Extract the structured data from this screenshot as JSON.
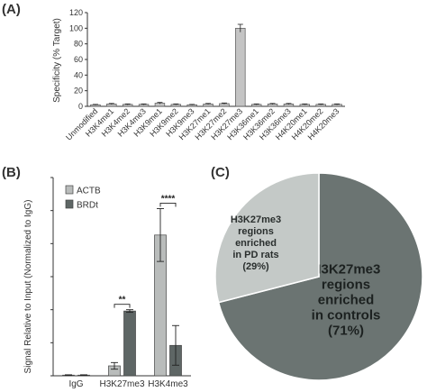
{
  "panels": {
    "a": "(A)",
    "b": "(B)",
    "c": "(C)"
  },
  "chart_data": [
    {
      "panel": "A",
      "type": "bar",
      "ylabel": "Specificity (% Target)",
      "xlabel": "",
      "ylim": [
        0,
        120
      ],
      "yticks": [
        0,
        20,
        40,
        60,
        80,
        100,
        120
      ],
      "categories": [
        "Unmodified",
        "H3K4me1",
        "H3K4me2",
        "H3K4me3",
        "H3K9me1",
        "H3K9me2",
        "H3K9me3",
        "H3K27me1",
        "H3K27me2",
        "H3K27me3",
        "H3K36me1",
        "H3K36me2",
        "H3K36me3",
        "H4K20me1",
        "H4K20me2",
        "H4K20me3"
      ],
      "values": [
        2,
        3,
        2.5,
        2.5,
        4,
        2.5,
        2,
        3,
        3.5,
        100,
        2.5,
        3,
        3,
        2.5,
        2.5,
        2.5
      ],
      "errors": [
        0.5,
        0.7,
        0.6,
        0.6,
        1.0,
        0.6,
        0.5,
        0.7,
        0.8,
        5,
        0.6,
        0.7,
        0.7,
        0.6,
        0.6,
        0.6
      ],
      "bar_color": "#c4c4c4"
    },
    {
      "panel": "B",
      "type": "bar",
      "ylabel": "Signal Relative to Input (Normalized to IgG)",
      "xlabel": "",
      "ylim": [
        0,
        300
      ],
      "yticks": [
        0,
        50,
        100,
        150,
        200,
        250,
        300
      ],
      "categories": [
        "IgG",
        "H3K27me3",
        "H3K4me3"
      ],
      "series": [
        {
          "name": "ACTB",
          "values": [
            1,
            15,
            213
          ],
          "errors": [
            0.5,
            5,
            40
          ],
          "color": "#b9bcbb"
        },
        {
          "name": "BRDt",
          "values": [
            1,
            98,
            46
          ],
          "errors": [
            0.5,
            2,
            30
          ],
          "color": "#5e6665"
        }
      ],
      "significance": [
        {
          "category": "H3K27me3",
          "label": "**"
        },
        {
          "category": "H3K4me3",
          "label": "****"
        }
      ]
    },
    {
      "panel": "C",
      "type": "pie",
      "slices": [
        {
          "label_lines": [
            "H3K27me3",
            "regions",
            "enriched",
            "in controls",
            "(71%)"
          ],
          "value": 71,
          "color": "#6b7472",
          "text_color": "#1c2120"
        },
        {
          "label_lines": [
            "H3K27me3",
            "regions",
            "enriched",
            "in PD rats",
            "(29%)"
          ],
          "value": 29,
          "color": "#c4c9c7",
          "text_color": "#2a2f2e"
        }
      ]
    }
  ]
}
